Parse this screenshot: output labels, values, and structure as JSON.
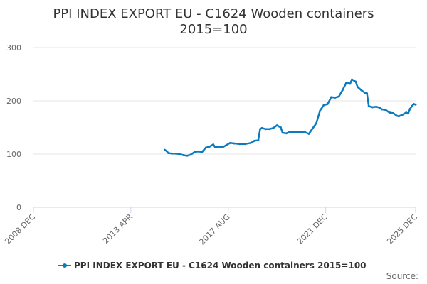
{
  "title_line1": "PPI INDEX EXPORT EU - C1624 Wooden containers",
  "title_line2": "2015=100",
  "source_label": "Source:",
  "colors": {
    "series": "#0b7bbf",
    "grid": "#e6e6e6",
    "axis": "#ccd6eb"
  },
  "chart_data": {
    "type": "line",
    "title": "PPI INDEX EXPORT EU - C1624 Wooden containers 2015=100",
    "xlabel": "",
    "ylabel": "",
    "ylim": [
      0,
      300
    ],
    "y_ticks": [
      0,
      100,
      200,
      300
    ],
    "x_range": [
      "2008-12",
      "2025-12"
    ],
    "x_ticks": [
      {
        "date": "2008-12",
        "label": "2008 DEC"
      },
      {
        "date": "2013-04",
        "label": "2013 APR"
      },
      {
        "date": "2017-08",
        "label": "2017 AUG"
      },
      {
        "date": "2021-12",
        "label": "2021 DEC"
      },
      {
        "date": "2025-12",
        "label": "2025 DEC"
      }
    ],
    "grid": "horizontal",
    "legend": "bottom",
    "series": [
      {
        "name": "PPI INDEX EXPORT EU - C1624 Wooden containers 2015=100",
        "points": [
          [
            "2014-10",
            108
          ],
          [
            "2014-11",
            106
          ],
          [
            "2014-12",
            102
          ],
          [
            "2015-02",
            101
          ],
          [
            "2015-04",
            101
          ],
          [
            "2015-06",
            100
          ],
          [
            "2015-08",
            98
          ],
          [
            "2015-10",
            97
          ],
          [
            "2015-12",
            99
          ],
          [
            "2016-02",
            104
          ],
          [
            "2016-04",
            105
          ],
          [
            "2016-06",
            104
          ],
          [
            "2016-08",
            112
          ],
          [
            "2016-10",
            114
          ],
          [
            "2016-12",
            118
          ],
          [
            "2017-01",
            113
          ],
          [
            "2017-03",
            114
          ],
          [
            "2017-05",
            113
          ],
          [
            "2017-07",
            117
          ],
          [
            "2017-09",
            121
          ],
          [
            "2017-11",
            120
          ],
          [
            "2018-02",
            119
          ],
          [
            "2018-05",
            119
          ],
          [
            "2018-08",
            121
          ],
          [
            "2018-10",
            125
          ],
          [
            "2018-12",
            126
          ],
          [
            "2019-01",
            147
          ],
          [
            "2019-02",
            149
          ],
          [
            "2019-04",
            147
          ],
          [
            "2019-06",
            147
          ],
          [
            "2019-08",
            149
          ],
          [
            "2019-10",
            154
          ],
          [
            "2019-12",
            150
          ],
          [
            "2020-01",
            140
          ],
          [
            "2020-03",
            139
          ],
          [
            "2020-05",
            142
          ],
          [
            "2020-07",
            141
          ],
          [
            "2020-09",
            142
          ],
          [
            "2020-11",
            141
          ],
          [
            "2021-01",
            141
          ],
          [
            "2021-03",
            138
          ],
          [
            "2021-05",
            148
          ],
          [
            "2021-07",
            158
          ],
          [
            "2021-09",
            182
          ],
          [
            "2021-11",
            192
          ],
          [
            "2022-01",
            194
          ],
          [
            "2022-03",
            207
          ],
          [
            "2022-05",
            206
          ],
          [
            "2022-07",
            208
          ],
          [
            "2022-09",
            220
          ],
          [
            "2022-11",
            234
          ],
          [
            "2023-01",
            232
          ],
          [
            "2023-02",
            240
          ],
          [
            "2023-04",
            236
          ],
          [
            "2023-05",
            226
          ],
          [
            "2023-07",
            220
          ],
          [
            "2023-09",
            215
          ],
          [
            "2023-10",
            214
          ],
          [
            "2023-11",
            190
          ],
          [
            "2024-01",
            188
          ],
          [
            "2024-03",
            189
          ],
          [
            "2024-05",
            187
          ],
          [
            "2024-06",
            184
          ],
          [
            "2024-08",
            183
          ],
          [
            "2024-10",
            178
          ],
          [
            "2024-12",
            177
          ],
          [
            "2025-02",
            172
          ],
          [
            "2025-03",
            171
          ],
          [
            "2025-05",
            174
          ],
          [
            "2025-07",
            178
          ],
          [
            "2025-08",
            176
          ],
          [
            "2025-09",
            185
          ],
          [
            "2025-10",
            190
          ],
          [
            "2025-11",
            194
          ],
          [
            "2025-12",
            193
          ]
        ]
      }
    ]
  }
}
